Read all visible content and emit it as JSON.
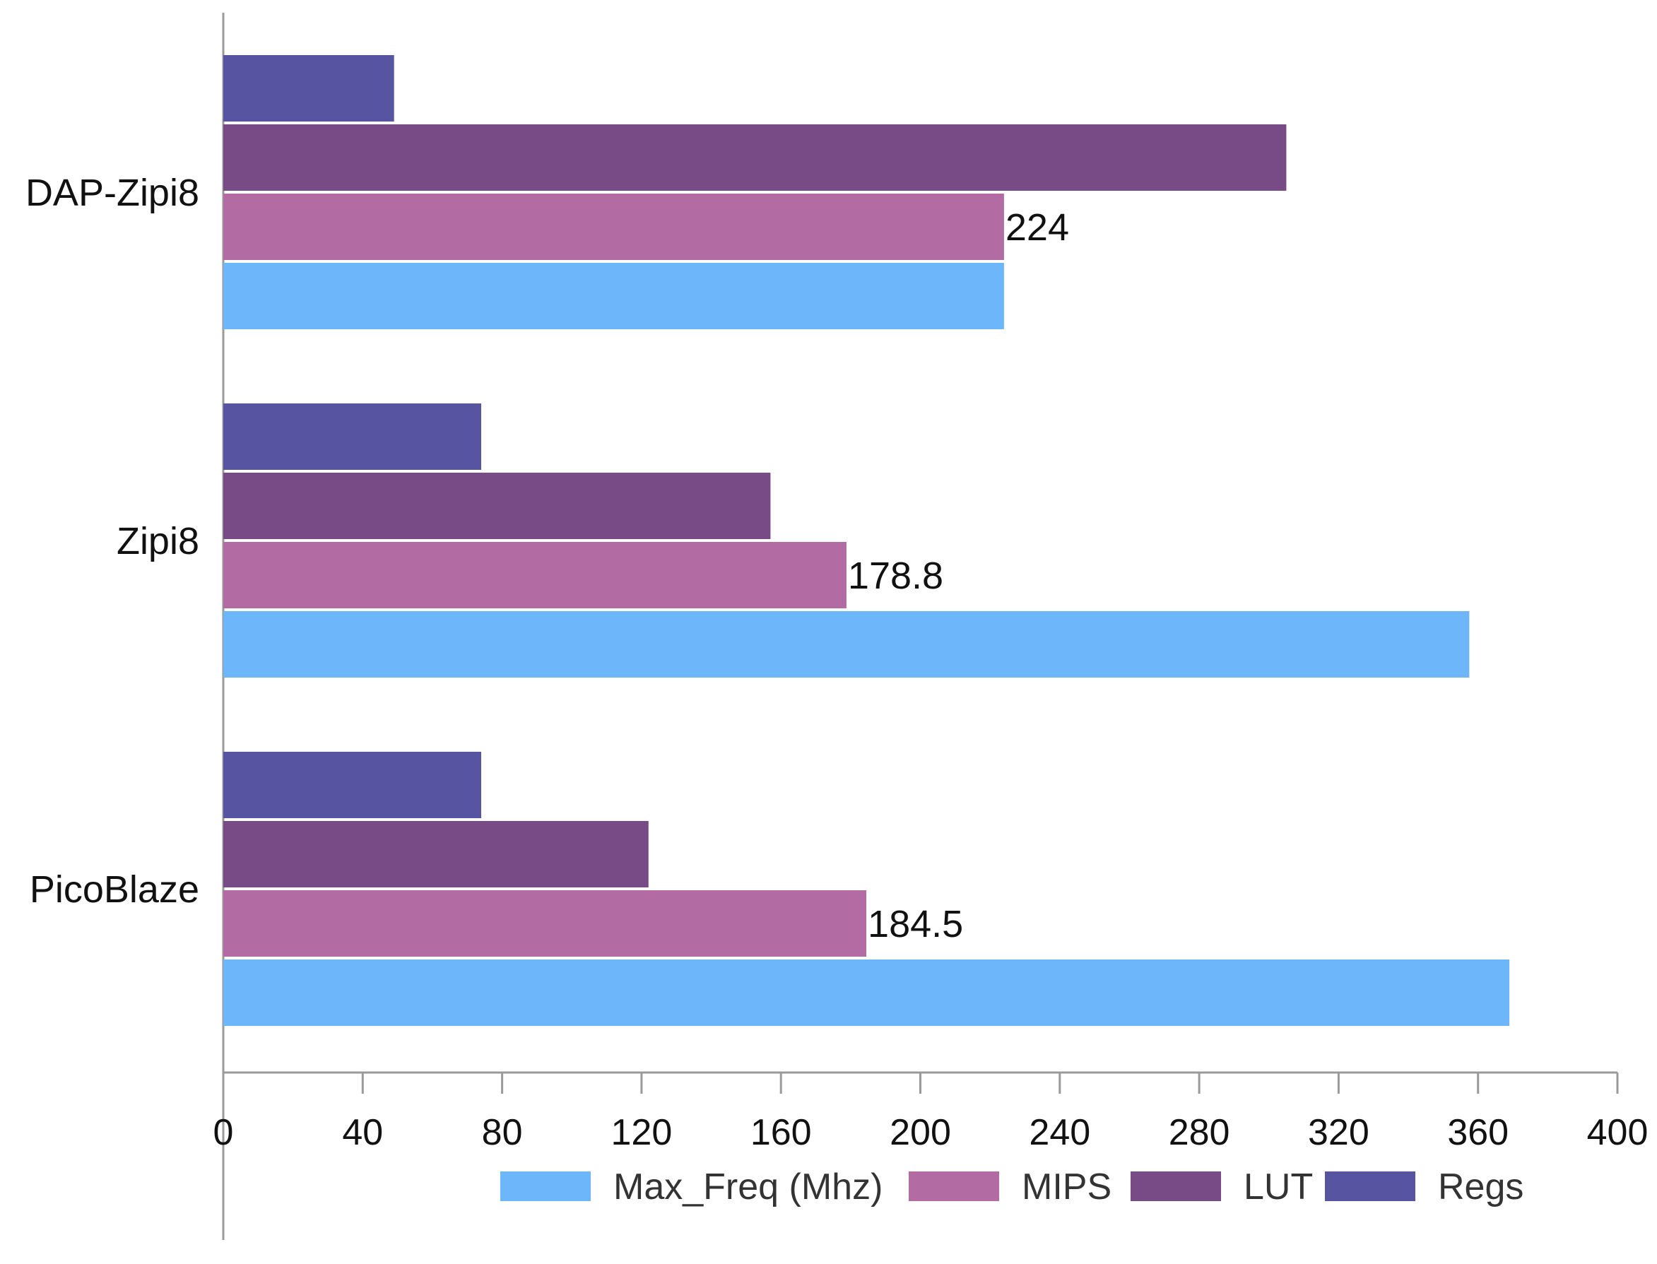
{
  "chart_data": {
    "type": "bar",
    "orientation": "horizontal",
    "title": "",
    "xlabel": "",
    "ylabel": "",
    "xlim": [
      0,
      400
    ],
    "x_ticks": [
      0,
      40,
      80,
      120,
      160,
      200,
      240,
      280,
      320,
      360,
      400
    ],
    "x_tick_labels": [
      "0",
      "40",
      "80",
      "120",
      "160",
      "200",
      "240",
      "280",
      "320",
      "360",
      "400"
    ],
    "grid": false,
    "legend_position": "bottom",
    "categories": [
      "DAP-Zipi8",
      "Zipi8",
      "PicoBlaze"
    ],
    "series": [
      {
        "name": "Regs",
        "color": "#5754A2",
        "values": [
          49,
          74,
          74
        ]
      },
      {
        "name": "LUT",
        "color": "#784B86",
        "values": [
          305,
          157,
          122
        ]
      },
      {
        "name": "MIPS",
        "color": "#B26CA3",
        "values": [
          224,
          178.8,
          184.5
        ],
        "data_labels": [
          "224",
          "178.8",
          "184.5"
        ]
      },
      {
        "name": "Max_Freq (Mhz)",
        "color": "#6EB6FA",
        "values": [
          224,
          357.5,
          369
        ]
      }
    ],
    "legend": [
      {
        "name": "Max_Freq (Mhz)",
        "color": "#6EB6FA"
      },
      {
        "name": "MIPS",
        "color": "#B26CA3"
      },
      {
        "name": "LUT",
        "color": "#784B86"
      },
      {
        "name": "Regs",
        "color": "#5754A2"
      }
    ]
  }
}
